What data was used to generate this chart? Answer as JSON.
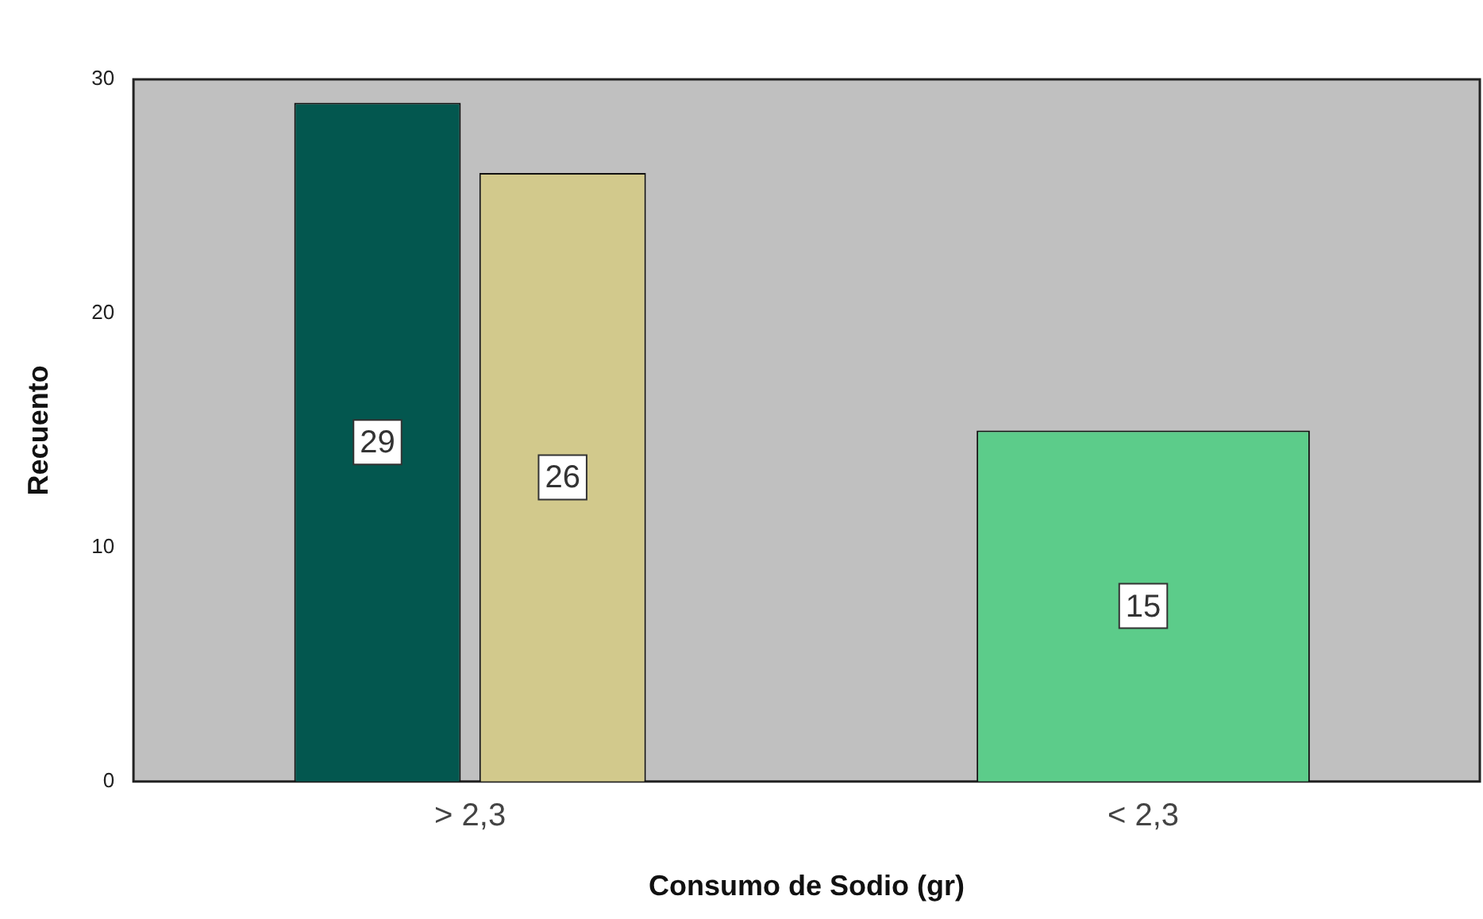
{
  "chart_data": {
    "type": "bar",
    "xlabel": "Consumo de Sodio (gr)",
    "ylabel": "Recuento",
    "categories": [
      "> 2,3",
      "< 2,3"
    ],
    "series": [
      {
        "color": "#03574f",
        "values": [
          29,
          null
        ]
      },
      {
        "color": "#d2c98c",
        "values": [
          26,
          null
        ]
      },
      {
        "color": "#5ccc8a",
        "values": [
          null,
          15
        ]
      }
    ],
    "ylim": [
      0,
      30
    ],
    "yticks": [
      0,
      10,
      20,
      30
    ],
    "grid": false,
    "legend": false,
    "data_labels": true
  }
}
